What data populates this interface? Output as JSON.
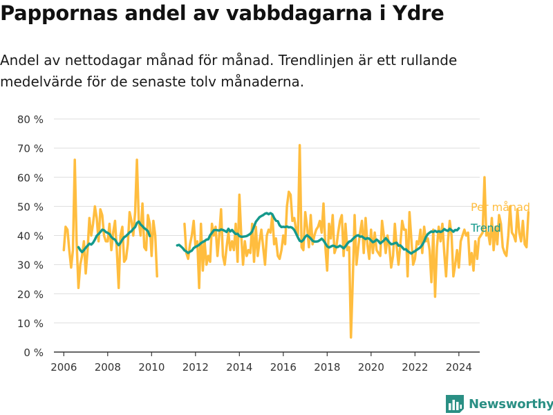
{
  "title": "Pappornas andel av vabbdagarna i Ydre",
  "subtitle": "Andel av nettodagar månad för månad. Trendlinjen är ett rullande medelvärde för de senaste tolv månaderna.",
  "brand": {
    "name": "Newsworthy",
    "icon": "newsworthy-logo-icon"
  },
  "colors": {
    "monthly": "#ffbd3f",
    "trend": "#15998c",
    "grid": "#dddddd",
    "axis": "#333333"
  },
  "chart_data": {
    "type": "line",
    "title": "Pappornas andel av vabbdagarna i Ydre",
    "subtitle": "Andel av nettodagar månad för månad. Trendlinjen är ett rullande medelvärde för de senaste tolv månaderna.",
    "xlabel": "",
    "ylabel": "",
    "xlim": [
      2005.55,
      2024.95
    ],
    "ylim": [
      0,
      80
    ],
    "grid": true,
    "x_ticks": [
      2006,
      2008,
      2010,
      2012,
      2014,
      2016,
      2018,
      2020,
      2022,
      2024
    ],
    "x_tick_labels": [
      "2006",
      "2008",
      "2010",
      "2012",
      "2014",
      "2016",
      "2018",
      "2020",
      "2022",
      "2024"
    ],
    "y_ticks": [
      0,
      10,
      20,
      30,
      40,
      50,
      60,
      70,
      80
    ],
    "y_tick_labels": [
      "0 %",
      "10 %",
      "20 %",
      "30 %",
      "40 %",
      "50 %",
      "60 %",
      "70 %",
      "80 %"
    ],
    "legend_placement": "direct labels right of line ends",
    "series": [
      {
        "name": "Per månad",
        "start": "2006-01",
        "values": [
          35,
          43,
          42,
          35,
          29,
          35,
          66,
          38,
          22,
          30,
          33,
          38,
          27,
          35,
          46,
          40,
          44,
          50,
          46,
          38,
          49,
          47,
          40,
          38,
          38,
          44,
          35,
          41,
          45,
          35,
          22,
          40,
          43,
          31,
          32,
          37,
          48,
          45,
          40,
          48,
          66,
          45,
          40,
          51,
          36,
          35,
          47,
          44,
          33,
          45,
          40,
          26,
          null,
          null,
          null,
          null,
          null,
          null,
          null,
          null,
          null,
          null,
          null,
          null,
          null,
          null,
          44,
          34,
          32,
          37,
          40,
          45,
          36,
          38,
          22,
          44,
          28,
          38,
          30,
          33,
          31,
          44,
          40,
          43,
          33,
          40,
          49,
          33,
          30,
          36,
          41,
          35,
          38,
          35,
          44,
          31,
          54,
          40,
          30,
          38,
          33,
          35,
          34,
          44,
          31,
          43,
          33,
          38,
          42,
          36,
          30,
          40,
          42,
          41,
          47,
          37,
          39,
          33,
          32,
          35,
          40,
          37,
          50,
          55,
          54,
          45,
          46,
          42,
          40,
          71,
          36,
          35,
          48,
          43,
          36,
          47,
          37,
          40,
          42,
          43,
          45,
          41,
          51,
          36,
          28,
          44,
          39,
          47,
          34,
          36,
          41,
          45,
          47,
          33,
          44,
          35,
          36,
          5,
          25,
          47,
          30,
          36,
          41,
          45,
          34,
          46,
          37,
          32,
          42,
          34,
          41,
          35,
          34,
          33,
          45,
          40,
          34,
          40,
          36,
          29,
          33,
          44,
          36,
          30,
          37,
          45,
          42,
          42,
          26,
          48,
          39,
          30,
          32,
          38,
          37,
          42,
          34,
          43,
          38,
          39,
          35,
          24,
          42,
          19,
          36,
          43,
          38,
          44,
          34,
          26,
          38,
          45,
          40,
          26,
          30,
          35,
          29,
          38,
          40,
          42,
          40,
          41,
          30,
          34,
          28,
          38,
          32,
          39,
          40,
          41,
          60,
          40,
          41,
          37,
          46,
          35,
          43,
          37,
          47,
          44,
          36,
          34,
          33,
          40,
          50,
          41,
          40,
          38,
          49,
          41,
          38,
          45,
          37,
          36,
          48
        ]
      },
      {
        "name": "Trend",
        "start": "2006-09",
        "values": [
          36.0,
          35.0,
          34.3,
          35.0,
          35.8,
          36.5,
          37.2,
          36.9,
          37.5,
          38.6,
          39.9,
          40.5,
          41.2,
          42.0,
          41.8,
          41.2,
          40.9,
          40.5,
          39.5,
          38.9,
          38.6,
          37.5,
          36.7,
          37.5,
          38.6,
          39.4,
          39.8,
          40.4,
          41.1,
          41.5,
          42.3,
          42.9,
          44.3,
          44.8,
          43.8,
          43.2,
          42.5,
          42.1,
          41.5,
          39.8,
          null,
          null,
          null,
          null,
          null,
          null,
          null,
          null,
          null,
          null,
          null,
          null,
          null,
          null,
          36.6,
          36.8,
          36.3,
          35.7,
          34.9,
          34.5,
          34.0,
          34.5,
          34.8,
          35.7,
          36.1,
          36.4,
          36.8,
          37.4,
          37.8,
          38.1,
          38.6,
          38.7,
          40.1,
          40.9,
          41.8,
          41.9,
          41.8,
          41.7,
          42.1,
          41.9,
          41.6,
          41.2,
          42.3,
          41.4,
          41.9,
          41.1,
          40.5,
          40.6,
          39.8,
          39.6,
          39.6,
          39.7,
          39.8,
          40.2,
          40.6,
          41.4,
          43.1,
          44.7,
          45.5,
          46.3,
          46.7,
          47.0,
          47.5,
          47.7,
          47.3,
          47.7,
          47.3,
          46.0,
          45.1,
          44.9,
          43.5,
          42.9,
          43.0,
          42.9,
          43.1,
          42.8,
          42.9,
          42.6,
          41.9,
          40.7,
          39.3,
          38.2,
          37.9,
          38.5,
          39.6,
          40.1,
          39.6,
          39.0,
          38.2,
          37.9,
          37.9,
          38.0,
          38.4,
          38.9,
          38.3,
          37.3,
          36.3,
          35.9,
          36.2,
          36.5,
          36.4,
          36.0,
          36.1,
          36.5,
          36.1,
          35.6,
          36.3,
          37.2,
          37.9,
          38.1,
          38.8,
          39.4,
          39.9,
          40.1,
          39.6,
          39.7,
          39.2,
          38.8,
          39.1,
          38.9,
          38.3,
          37.7,
          38.0,
          38.6,
          38.1,
          37.3,
          37.8,
          38.3,
          39.1,
          38.4,
          37.6,
          37.0,
          37.1,
          37.4,
          37.5,
          36.5,
          36.6,
          36.0,
          35.2,
          35.3,
          34.6,
          34.2,
          33.8,
          34.3,
          34.6,
          35.1,
          35.5,
          36.0,
          36.8,
          38.0,
          39.5,
          40.5,
          41.0,
          41.4,
          41.2,
          41.6,
          41.2,
          41.5,
          41.2,
          41.5,
          42.2,
          41.8,
          41.6,
          42.3,
          41.8,
          41.3,
          41.9,
          41.8,
          42.5
        ]
      }
    ]
  }
}
